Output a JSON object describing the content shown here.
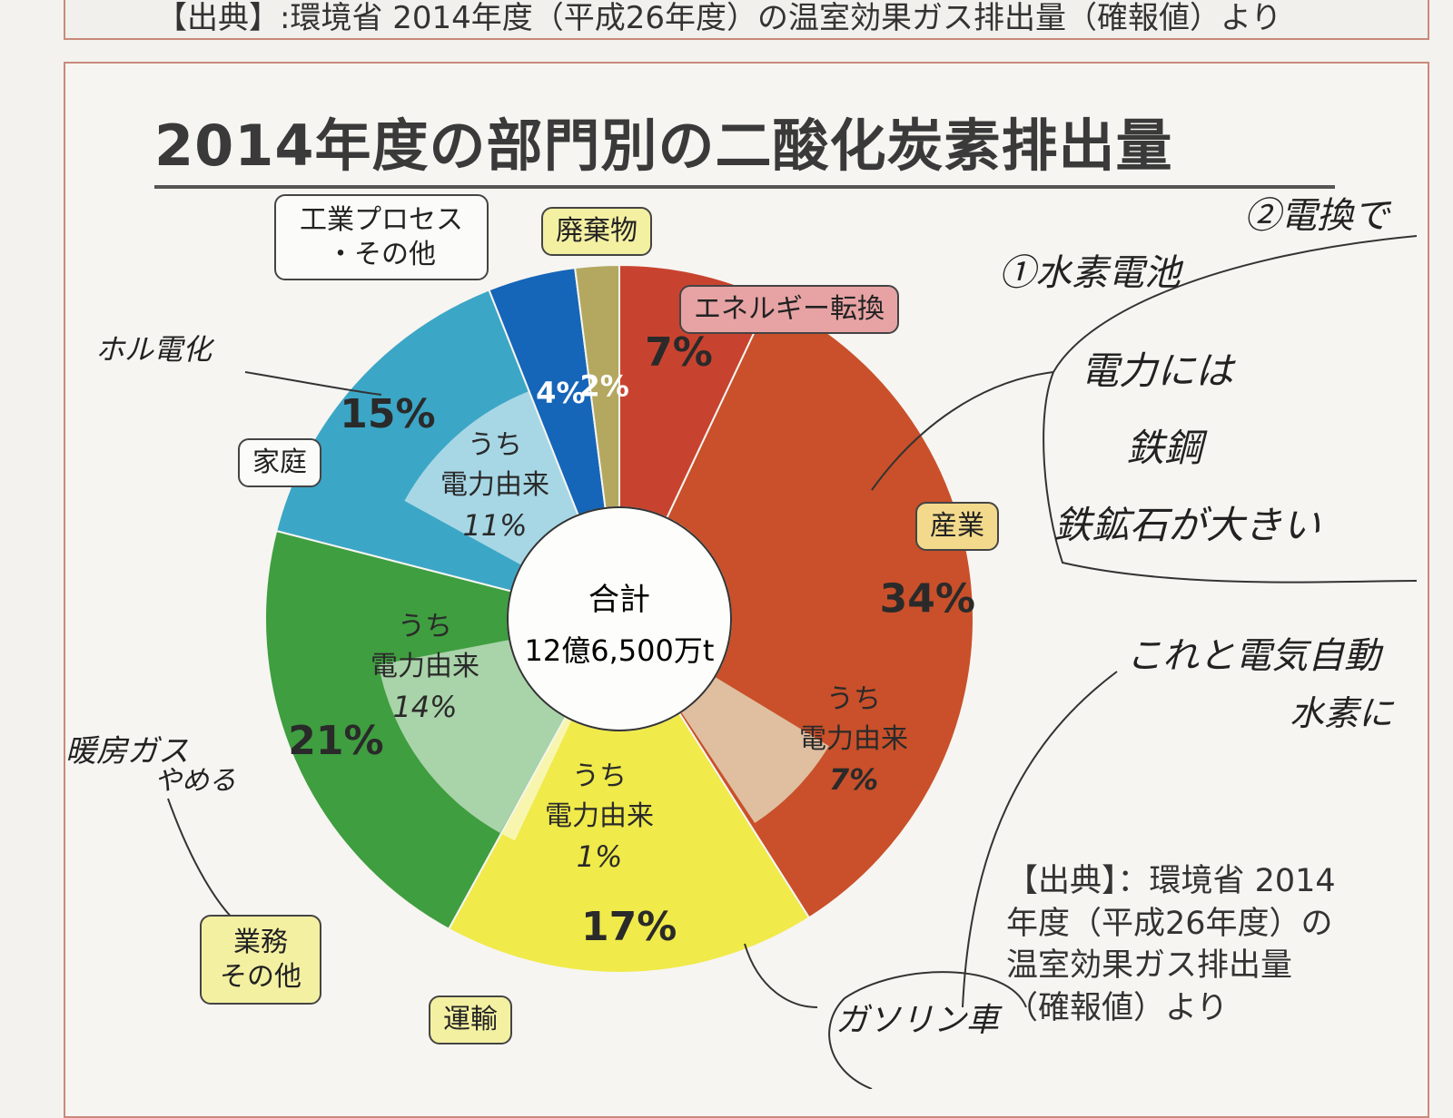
{
  "header": {
    "top_text": "【出典】:環境省 2014年度（平成26年度）の温室効果ガス排出量（確報値）より"
  },
  "title": "2014年度の部門別の二酸化炭素排出量",
  "center": {
    "line1": "合計",
    "line2": "12億6,500万t"
  },
  "chart_data": {
    "type": "pie",
    "title": "2014年度の部門別の二酸化炭素排出量",
    "total": "12億6,500万t",
    "slices": [
      {
        "label": "エネルギー転換",
        "value": 7,
        "display": "7%",
        "color": "#c8432f"
      },
      {
        "label": "産業",
        "value": 34,
        "display": "34%",
        "color": "#c9502a",
        "sub_label": "うち電力由来",
        "sub_value": 7,
        "sub_display": "7%"
      },
      {
        "label": "運輸",
        "value": 17,
        "display": "17%",
        "color": "#f0ea4a",
        "sub_label": "うち電力由来",
        "sub_value": 1,
        "sub_display": "1%"
      },
      {
        "label": "業務その他",
        "value": 21,
        "display": "21%",
        "color": "#3f9e40",
        "sub_label": "うち電力由来",
        "sub_value": 14,
        "sub_display": "14%"
      },
      {
        "label": "家庭",
        "value": 15,
        "display": "15%",
        "color": "#3ca6c6",
        "sub_label": "うち電力由来",
        "sub_value": 11,
        "sub_display": "11%"
      },
      {
        "label": "工業プロセス・その他",
        "value": 4,
        "display": "4%",
        "color": "#1565b8"
      },
      {
        "label": "廃棄物",
        "value": 2,
        "display": "2%",
        "color": "#b4a860"
      }
    ]
  },
  "callouts": {
    "energy": "エネルギー転換",
    "industry": "産業",
    "transport": "運輸",
    "business_1": "業務",
    "business_2": "その他",
    "home": "家庭",
    "process_1": "工業プロセス",
    "process_2": "・その他",
    "waste": "廃棄物"
  },
  "sub_text": {
    "l1": "うち",
    "l2": "電力由来"
  },
  "source": {
    "line1": "【出典】：環境省 2014",
    "line2": "年度（平成26年度）の",
    "line3": "温室効果ガス排出量",
    "line4": "（確報値）より"
  },
  "handwriting": {
    "n1": "①水素電池",
    "n2": "②電換で",
    "n3": "電力には",
    "n4": "鉄鋼",
    "n5": "鉄鉱石が大きい",
    "n6": "これと電気自動",
    "n7": "水素に",
    "n8": "ガソリン車",
    "n9": "暖房ガス",
    "n10": "やめる",
    "n11": "ホル電化"
  }
}
